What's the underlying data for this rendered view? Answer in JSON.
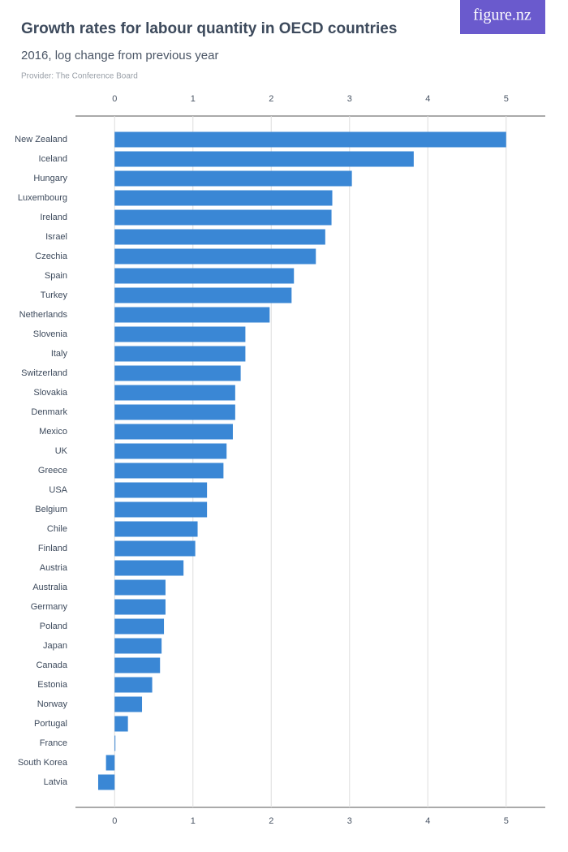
{
  "logo": "figure.nz",
  "chart_data": {
    "type": "hbar",
    "title": "Growth rates for labour quantity in OECD countries",
    "subtitle": "2016, log change from previous year",
    "source": "Provider: The Conference Board",
    "categories": [
      "New Zealand",
      "Iceland",
      "Hungary",
      "Luxembourg",
      "Ireland",
      "Israel",
      "Czechia",
      "Spain",
      "Turkey",
      "Netherlands",
      "Slovenia",
      "Italy",
      "Switzerland",
      "Slovakia",
      "Denmark",
      "Mexico",
      "UK",
      "Greece",
      "USA",
      "Belgium",
      "Chile",
      "Finland",
      "Austria",
      "Australia",
      "Germany",
      "Poland",
      "Japan",
      "Canada",
      "Estonia",
      "Norway",
      "Portugal",
      "France",
      "South Korea",
      "Latvia"
    ],
    "values": [
      5.0,
      3.82,
      3.03,
      2.78,
      2.77,
      2.69,
      2.57,
      2.29,
      2.26,
      1.98,
      1.67,
      1.67,
      1.61,
      1.54,
      1.54,
      1.51,
      1.43,
      1.39,
      1.18,
      1.18,
      1.06,
      1.03,
      0.88,
      0.65,
      0.65,
      0.63,
      0.6,
      0.58,
      0.48,
      0.35,
      0.17,
      0.01,
      -0.11,
      -0.21
    ],
    "color": "#3a87d5",
    "xlim": [
      -0.5,
      5.5
    ],
    "xticks": [
      0,
      1,
      2,
      3,
      4,
      5
    ],
    "grid": true
  }
}
